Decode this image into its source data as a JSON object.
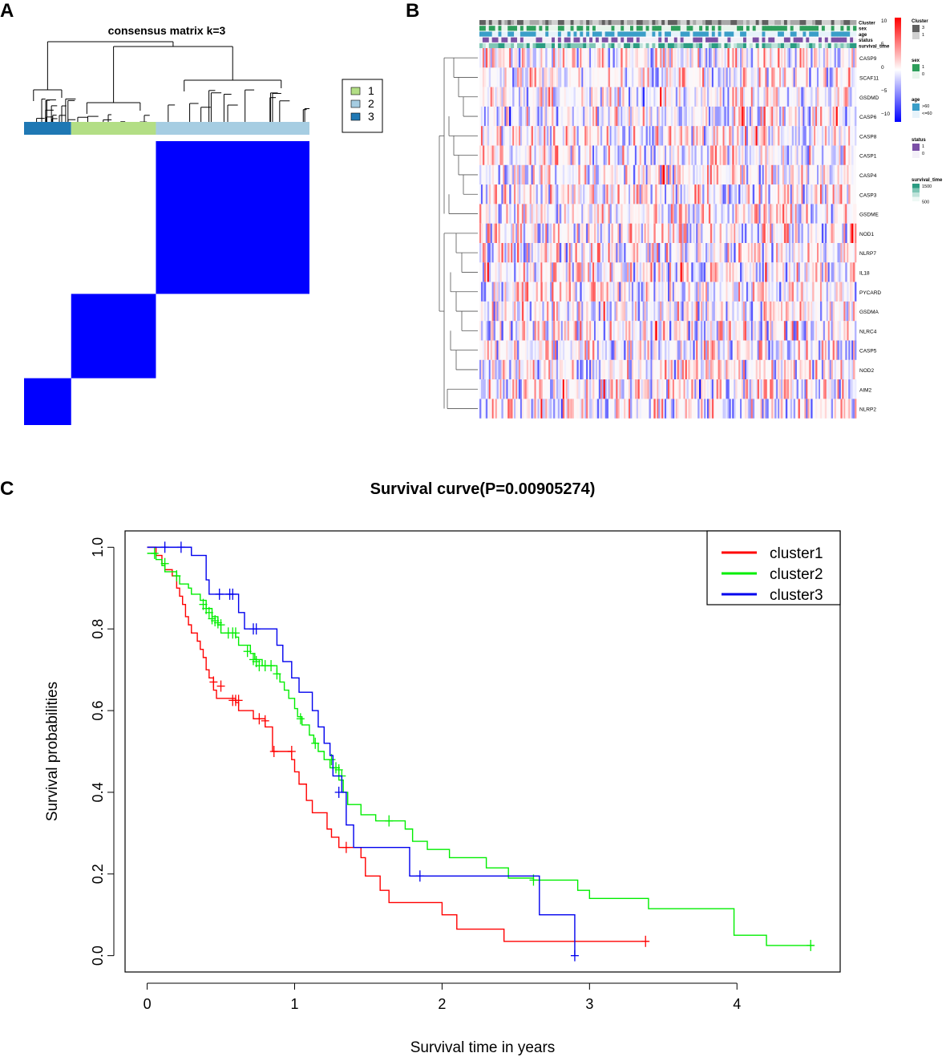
{
  "panels": {
    "a": "A",
    "b": "B",
    "c": "C"
  },
  "chart_data": [
    {
      "type": "heatmap",
      "title": "consensus matrix k=3",
      "clusters": [
        {
          "label": "1",
          "color": "#b3de85"
        },
        {
          "label": "2",
          "color": "#a6cde2"
        },
        {
          "label": "3",
          "color": "#1f78b4"
        }
      ],
      "order": [
        "3",
        "1",
        "2"
      ],
      "relative_sizes": [
        0.165,
        0.297,
        0.538
      ],
      "consensus_color": "#0000ff"
    },
    {
      "type": "heatmap",
      "rows": [
        "CASP9",
        "SCAF11",
        "GSDMD",
        "CASP6",
        "CASP8",
        "CASP1",
        "CASP4",
        "CASP3",
        "GSDME",
        "NOD1",
        "NLRP7",
        "IL18",
        "PYCARD",
        "GSDMA",
        "NLRC4",
        "CASP5",
        "NOD2",
        "AIM2",
        "NLRP2"
      ],
      "annotation_tracks": [
        "Cluster",
        "sex",
        "age",
        "status",
        "survival_time"
      ],
      "color_scale": {
        "title": "",
        "ticks": [
          "10",
          "5",
          "0",
          "−5",
          "−10"
        ],
        "colors": [
          "#ff0000",
          "#ffffff",
          "#0000ff"
        ]
      },
      "legends": [
        {
          "title": "Cluster",
          "items": [
            {
              "label": "3",
              "color": "#606060"
            },
            {
              "label": "1",
              "color": "#d0d0d0"
            }
          ]
        },
        {
          "title": "sex",
          "items": [
            {
              "label": "1",
              "color": "#2e9e5b"
            },
            {
              "label": "0",
              "color": "#e8f5ec"
            }
          ]
        },
        {
          "title": "age",
          "items": [
            {
              "label": ">60",
              "color": "#3a9ec8"
            },
            {
              "label": "<=60",
              "color": "#e7f3fa"
            }
          ]
        },
        {
          "title": "status",
          "items": [
            {
              "label": "1",
              "color": "#7b4fa6"
            },
            {
              "label": "0",
              "color": "#f4f0f8"
            }
          ]
        },
        {
          "title": "survival_time",
          "items": [
            {
              "label": "1500",
              "color": "#2b9c82"
            },
            {
              "label": "",
              "color": "#7fc6b5"
            },
            {
              "label": "",
              "color": "#bfe3da"
            },
            {
              "label": "500",
              "color": "#eef8f5"
            }
          ]
        }
      ]
    },
    {
      "type": "line",
      "title": "Survival curve(P=0.00905274)",
      "xlabel": "Survival time in years",
      "ylabel": "Survival probabilities",
      "xlim": [
        -0.15,
        4.7
      ],
      "ylim": [
        -0.04,
        1.04
      ],
      "xticks": [
        "0",
        "1",
        "2",
        "3",
        "4"
      ],
      "yticks": [
        "0.0",
        "0.2",
        "0.4",
        "0.6",
        "0.8",
        "1.0"
      ],
      "legend_position": "top-right",
      "series": [
        {
          "name": "cluster1",
          "color": "#ff0000",
          "steps": [
            [
              0,
              1.0
            ],
            [
              0.06,
              0.98
            ],
            [
              0.1,
              0.96
            ],
            [
              0.12,
              0.945
            ],
            [
              0.17,
              0.93
            ],
            [
              0.2,
              0.9
            ],
            [
              0.22,
              0.88
            ],
            [
              0.24,
              0.86
            ],
            [
              0.26,
              0.83
            ],
            [
              0.28,
              0.81
            ],
            [
              0.3,
              0.79
            ],
            [
              0.34,
              0.77
            ],
            [
              0.36,
              0.75
            ],
            [
              0.38,
              0.73
            ],
            [
              0.4,
              0.7
            ],
            [
              0.42,
              0.68
            ],
            [
              0.45,
              0.65
            ],
            [
              0.47,
              0.63
            ],
            [
              0.6,
              0.62
            ],
            [
              0.62,
              0.6
            ],
            [
              0.72,
              0.58
            ],
            [
              0.8,
              0.56
            ],
            [
              0.85,
              0.5
            ],
            [
              0.98,
              0.48
            ],
            [
              1.0,
              0.45
            ],
            [
              1.03,
              0.42
            ],
            [
              1.08,
              0.38
            ],
            [
              1.12,
              0.35
            ],
            [
              1.22,
              0.31
            ],
            [
              1.25,
              0.29
            ],
            [
              1.3,
              0.265
            ],
            [
              1.45,
              0.24
            ],
            [
              1.48,
              0.195
            ],
            [
              1.58,
              0.16
            ],
            [
              1.64,
              0.13
            ],
            [
              2.0,
              0.1
            ],
            [
              2.1,
              0.065
            ],
            [
              2.42,
              0.035
            ],
            [
              3.4,
              0.035
            ]
          ],
          "censored": [
            [
              0.45,
              0.67
            ],
            [
              0.5,
              0.66
            ],
            [
              0.58,
              0.625
            ],
            [
              0.6,
              0.625
            ],
            [
              0.62,
              0.625
            ],
            [
              0.76,
              0.58
            ],
            [
              0.8,
              0.575
            ],
            [
              0.86,
              0.5
            ],
            [
              0.98,
              0.5
            ],
            [
              1.35,
              0.265
            ],
            [
              3.38,
              0.035
            ]
          ]
        },
        {
          "name": "cluster2",
          "color": "#00ee00",
          "steps": [
            [
              0,
              0.985
            ],
            [
              0.06,
              0.97
            ],
            [
              0.1,
              0.955
            ],
            [
              0.12,
              0.94
            ],
            [
              0.2,
              0.93
            ],
            [
              0.22,
              0.91
            ],
            [
              0.28,
              0.9
            ],
            [
              0.3,
              0.885
            ],
            [
              0.36,
              0.87
            ],
            [
              0.4,
              0.85
            ],
            [
              0.44,
              0.83
            ],
            [
              0.48,
              0.81
            ],
            [
              0.5,
              0.79
            ],
            [
              0.6,
              0.78
            ],
            [
              0.62,
              0.76
            ],
            [
              0.7,
              0.74
            ],
            [
              0.73,
              0.725
            ],
            [
              0.78,
              0.71
            ],
            [
              0.88,
              0.69
            ],
            [
              0.9,
              0.67
            ],
            [
              0.93,
              0.65
            ],
            [
              0.96,
              0.63
            ],
            [
              1.0,
              0.605
            ],
            [
              1.02,
              0.585
            ],
            [
              1.05,
              0.565
            ],
            [
              1.1,
              0.54
            ],
            [
              1.13,
              0.52
            ],
            [
              1.16,
              0.5
            ],
            [
              1.2,
              0.48
            ],
            [
              1.24,
              0.46
            ],
            [
              1.3,
              0.43
            ],
            [
              1.33,
              0.4
            ],
            [
              1.36,
              0.37
            ],
            [
              1.45,
              0.345
            ],
            [
              1.55,
              0.33
            ],
            [
              1.75,
              0.31
            ],
            [
              1.8,
              0.28
            ],
            [
              1.9,
              0.26
            ],
            [
              2.05,
              0.24
            ],
            [
              2.3,
              0.215
            ],
            [
              2.45,
              0.19
            ],
            [
              2.62,
              0.185
            ],
            [
              2.92,
              0.16
            ],
            [
              3.0,
              0.14
            ],
            [
              3.4,
              0.115
            ],
            [
              3.98,
              0.05
            ],
            [
              4.2,
              0.025
            ],
            [
              4.52,
              0.025
            ]
          ],
          "censored": [
            [
              0.05,
              0.985
            ],
            [
              0.12,
              0.96
            ],
            [
              0.2,
              0.93
            ],
            [
              0.38,
              0.86
            ],
            [
              0.4,
              0.85
            ],
            [
              0.42,
              0.84
            ],
            [
              0.44,
              0.825
            ],
            [
              0.46,
              0.82
            ],
            [
              0.48,
              0.815
            ],
            [
              0.5,
              0.81
            ],
            [
              0.55,
              0.79
            ],
            [
              0.58,
              0.79
            ],
            [
              0.6,
              0.79
            ],
            [
              0.68,
              0.745
            ],
            [
              0.72,
              0.725
            ],
            [
              0.74,
              0.72
            ],
            [
              0.76,
              0.71
            ],
            [
              0.8,
              0.71
            ],
            [
              0.84,
              0.71
            ],
            [
              0.88,
              0.69
            ],
            [
              1.04,
              0.58
            ],
            [
              1.14,
              0.52
            ],
            [
              1.25,
              0.48
            ],
            [
              1.28,
              0.46
            ],
            [
              1.3,
              0.455
            ],
            [
              1.32,
              0.44
            ],
            [
              1.64,
              0.33
            ],
            [
              2.62,
              0.185
            ],
            [
              4.5,
              0.025
            ]
          ]
        },
        {
          "name": "cluster3",
          "color": "#0000ee",
          "steps": [
            [
              0,
              1.0
            ],
            [
              0.3,
              0.98
            ],
            [
              0.4,
              0.92
            ],
            [
              0.42,
              0.885
            ],
            [
              0.62,
              0.84
            ],
            [
              0.66,
              0.8
            ],
            [
              0.88,
              0.76
            ],
            [
              0.92,
              0.72
            ],
            [
              0.98,
              0.68
            ],
            [
              1.03,
              0.645
            ],
            [
              1.12,
              0.6
            ],
            [
              1.16,
              0.56
            ],
            [
              1.2,
              0.52
            ],
            [
              1.24,
              0.49
            ],
            [
              1.26,
              0.44
            ],
            [
              1.32,
              0.4
            ],
            [
              1.35,
              0.32
            ],
            [
              1.4,
              0.265
            ],
            [
              1.78,
              0.195
            ],
            [
              2.66,
              0.1
            ],
            [
              2.9,
              0.0
            ]
          ],
          "censored": [
            [
              0.12,
              1.0
            ],
            [
              0.23,
              1.0
            ],
            [
              0.49,
              0.885
            ],
            [
              0.56,
              0.885
            ],
            [
              0.58,
              0.885
            ],
            [
              0.72,
              0.8
            ],
            [
              0.74,
              0.8
            ],
            [
              1.3,
              0.4
            ],
            [
              1.85,
              0.195
            ],
            [
              2.9,
              0.0
            ]
          ]
        }
      ]
    }
  ]
}
